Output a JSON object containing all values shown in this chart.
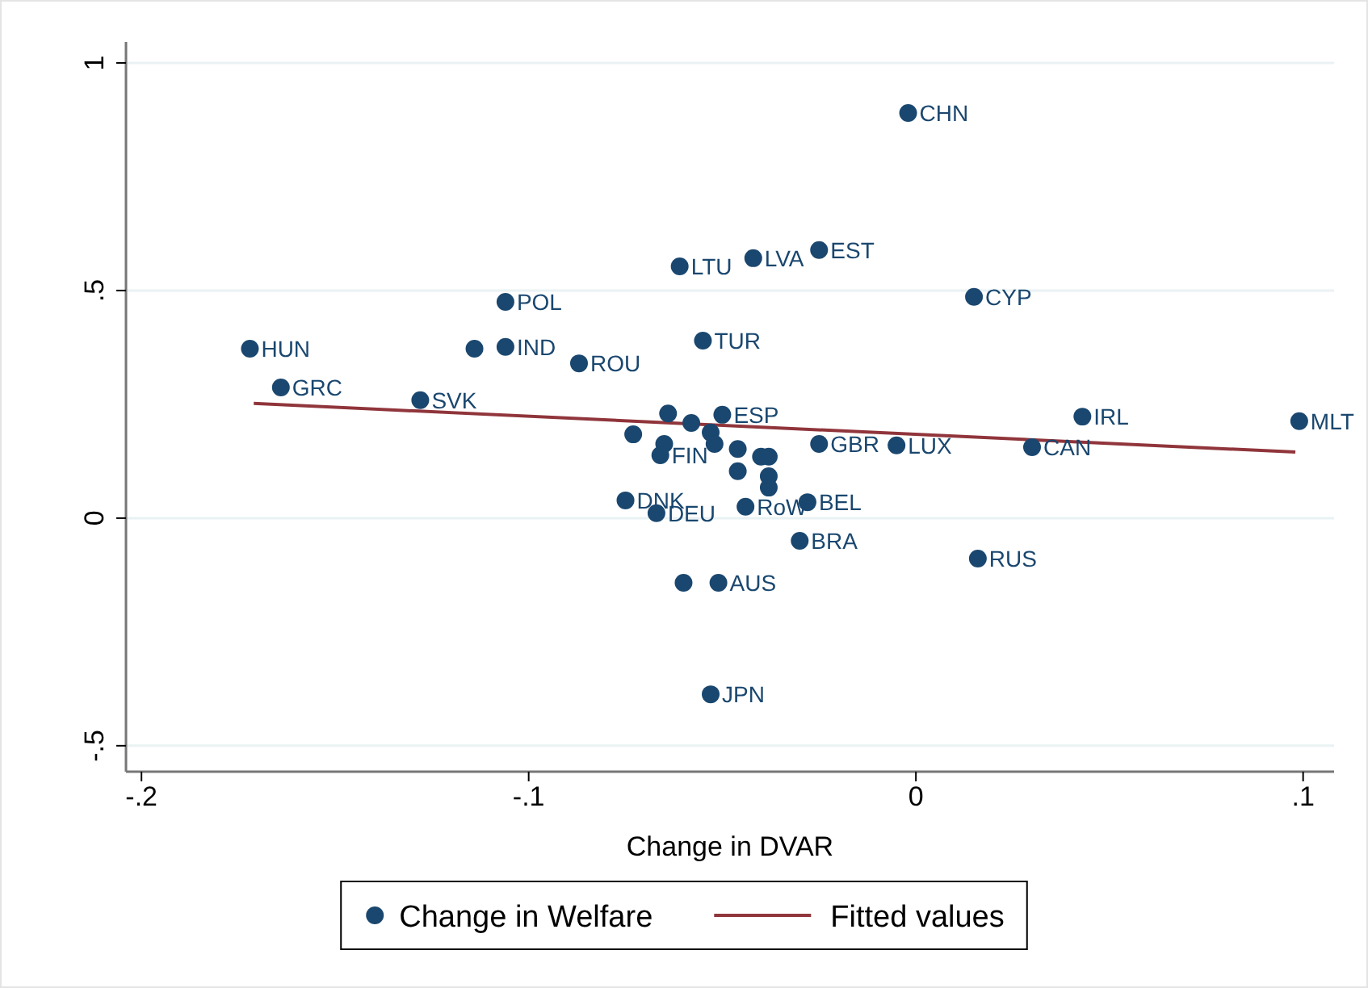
{
  "chart_data": {
    "type": "scatter",
    "xlabel": "Change in DVAR",
    "xlim": [
      -0.204,
      0.108
    ],
    "xticks": [
      {
        "value": -0.2,
        "label": "-.2"
      },
      {
        "value": -0.1,
        "label": "-.1"
      },
      0,
      {
        "value": 0.1,
        "label": ".1"
      }
    ],
    "ylim": [
      -0.557,
      1.046
    ],
    "yticks": [
      {
        "value": -0.5,
        "label": "-.5"
      },
      0,
      {
        "value": 0.5,
        "label": ".5"
      },
      1
    ],
    "grid": "y",
    "legend": "bottom",
    "marker": "circle",
    "series": [
      {
        "name": "Change in Welfare",
        "color": "#1a476f",
        "x": [
          -0.002,
          -0.025,
          -0.042,
          -0.061,
          0.015,
          -0.106,
          -0.055,
          -0.172,
          -0.114,
          -0.106,
          -0.087,
          -0.164,
          -0.128,
          0.043,
          0.099,
          -0.064,
          -0.058,
          -0.05,
          -0.073,
          -0.065,
          -0.066,
          -0.053,
          -0.052,
          -0.046,
          -0.04,
          -0.038,
          -0.025,
          -0.005,
          -0.046,
          -0.038,
          -0.038,
          -0.075,
          -0.067,
          -0.044,
          -0.028,
          -0.03,
          -0.06,
          -0.051,
          0.03,
          0.016,
          -0.053
        ],
        "values": [
          0.89,
          0.589,
          0.571,
          0.553,
          0.486,
          0.475,
          0.39,
          0.372,
          0.372,
          0.376,
          0.34,
          0.287,
          0.259,
          0.223,
          0.213,
          0.23,
          0.209,
          0.227,
          0.184,
          0.163,
          0.138,
          0.188,
          0.163,
          0.152,
          0.135,
          0.135,
          0.163,
          0.16,
          0.103,
          0.092,
          0.067,
          0.039,
          0.011,
          0.025,
          0.035,
          -0.05,
          -0.142,
          -0.142,
          0.156,
          -0.089,
          -0.387
        ]
      },
      {
        "name": "Fitted values",
        "type": "line",
        "color": "#90353b",
        "marker": "none",
        "x": [
          -0.171,
          0.098
        ],
        "values": [
          0.252,
          0.145
        ]
      }
    ],
    "annotations": [
      {
        "text": "CHN",
        "x": -0.002,
        "y": 0.89
      },
      {
        "text": "EST",
        "x": -0.025,
        "y": 0.589
      },
      {
        "text": "LVA",
        "x": -0.042,
        "y": 0.571
      },
      {
        "text": "LTU",
        "x": -0.061,
        "y": 0.553
      },
      {
        "text": "CYP",
        "x": 0.015,
        "y": 0.486
      },
      {
        "text": "POL",
        "x": -0.106,
        "y": 0.475
      },
      {
        "text": "TUR",
        "x": -0.055,
        "y": 0.39
      },
      {
        "text": "HUN",
        "x": -0.172,
        "y": 0.372
      },
      {
        "text": "IND",
        "x": -0.106,
        "y": 0.376
      },
      {
        "text": "ROU",
        "x": -0.087,
        "y": 0.34
      },
      {
        "text": "GRC",
        "x": -0.164,
        "y": 0.287
      },
      {
        "text": "SVK",
        "x": -0.128,
        "y": 0.259
      },
      {
        "text": "IRL",
        "x": 0.043,
        "y": 0.223
      },
      {
        "text": "MLT",
        "x": 0.099,
        "y": 0.213
      },
      {
        "text": "ESP",
        "x": -0.05,
        "y": 0.227
      },
      {
        "text": "FIN",
        "x": -0.066,
        "y": 0.138
      },
      {
        "text": "GBR",
        "x": -0.025,
        "y": 0.163
      },
      {
        "text": "LUX",
        "x": -0.005,
        "y": 0.16
      },
      {
        "text": "DNK",
        "x": -0.075,
        "y": 0.039
      },
      {
        "text": "DEU",
        "x": -0.067,
        "y": 0.011
      },
      {
        "text": "RoW",
        "x": -0.044,
        "y": 0.025
      },
      {
        "text": "BEL",
        "x": -0.028,
        "y": 0.035
      },
      {
        "text": "BRA",
        "x": -0.03,
        "y": -0.05
      },
      {
        "text": "AUS",
        "x": -0.051,
        "y": -0.142
      },
      {
        "text": "CAN",
        "x": 0.03,
        "y": 0.156
      },
      {
        "text": "RUS",
        "x": 0.016,
        "y": -0.089
      },
      {
        "text": "JPN",
        "x": -0.053,
        "y": -0.387
      }
    ]
  }
}
